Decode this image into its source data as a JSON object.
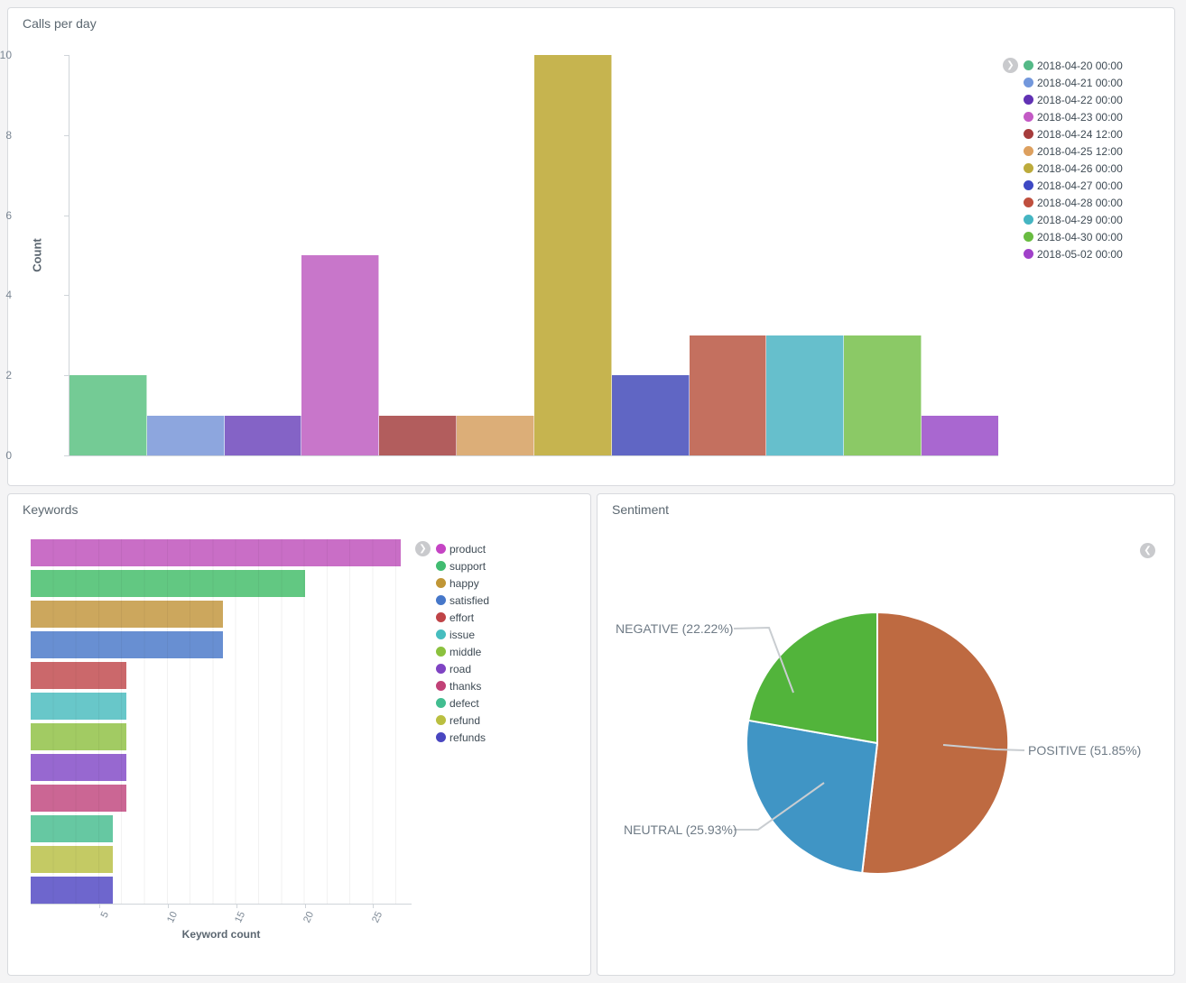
{
  "panels": {
    "calls": {
      "title": "Calls per day"
    },
    "keywords": {
      "title": "Keywords"
    },
    "sentiment": {
      "title": "Sentiment"
    }
  },
  "icons": {
    "collapse_right_chevron": "❯",
    "collapse_left_chevron": "❮"
  },
  "chart_data": [
    {
      "id": "calls_per_day",
      "type": "bar",
      "title": "Calls per day",
      "xlabel": "",
      "ylabel": "Count",
      "ylim": [
        0,
        10
      ],
      "yticks": [
        0,
        2,
        4,
        6,
        8,
        10
      ],
      "grid": false,
      "legend_position": "right",
      "categories": [
        "2018-04-20 00:00",
        "2018-04-21 00:00",
        "2018-04-22 00:00",
        "2018-04-23 00:00",
        "2018-04-24 12:00",
        "2018-04-25 12:00",
        "2018-04-26 00:00",
        "2018-04-27 00:00",
        "2018-04-28 00:00",
        "2018-04-29 00:00",
        "2018-04-30 00:00",
        "2018-05-02 00:00"
      ],
      "values": [
        2,
        1,
        1,
        5,
        1,
        1,
        10,
        2,
        3,
        3,
        3,
        1
      ],
      "bar_colors": [
        "#74cb95",
        "#8da6de",
        "#8463c6",
        "#c876ca",
        "#b25d5d",
        "#dcae78",
        "#c6b44f",
        "#6066c4",
        "#c4705f",
        "#66bfcc",
        "#8bc966",
        "#a967d0"
      ],
      "legend_colors": [
        "#54b987",
        "#7398dc",
        "#6132b4",
        "#c35ac5",
        "#a63c3c",
        "#dda05f",
        "#bcab3c",
        "#3e49c4",
        "#bf4f3e",
        "#45b5c2",
        "#69bc41",
        "#a041c9"
      ]
    },
    {
      "id": "keywords",
      "type": "bar",
      "orientation": "horizontal",
      "title": "Keywords",
      "xlabel": "Keyword count",
      "ylabel": "",
      "xlim": [
        0,
        27.8
      ],
      "xticks": [
        5,
        10,
        15,
        20,
        25
      ],
      "grid": true,
      "legend_position": "right",
      "categories": [
        "product",
        "support",
        "happy",
        "satisfied",
        "effort",
        "issue",
        "middle",
        "road",
        "thanks",
        "defect",
        "refund",
        "refunds"
      ],
      "values": [
        27,
        20,
        14,
        14,
        7,
        7,
        7,
        7,
        7,
        6,
        6,
        6
      ],
      "bar_colors": [
        "#c96ec6",
        "#62c882",
        "#cca75d",
        "#688fd2",
        "#cb686b",
        "#68c7c9",
        "#a2cb63",
        "#9768d0",
        "#cb6694",
        "#66c8a2",
        "#c4ca64",
        "#6e66cd"
      ],
      "legend_colors": [
        "#c544c4",
        "#41bc71",
        "#c09636",
        "#4677c9",
        "#bf4447",
        "#46bdbf",
        "#8bc13e",
        "#7f44c3",
        "#c14177",
        "#42bd90",
        "#babf40",
        "#4946c0"
      ]
    },
    {
      "id": "sentiment",
      "type": "pie",
      "title": "Sentiment",
      "start_angle_deg": 0,
      "slices": [
        {
          "label": "POSITIVE",
          "pct": 51.85,
          "color": "#be6a41",
          "display": "POSITIVE (51.85%)"
        },
        {
          "label": "NEUTRAL",
          "pct": 25.93,
          "color": "#4095c5",
          "display": "NEUTRAL (25.93%)"
        },
        {
          "label": "NEGATIVE",
          "pct": 22.22,
          "color": "#52b43b",
          "display": "NEGATIVE (22.22%)"
        }
      ]
    }
  ]
}
